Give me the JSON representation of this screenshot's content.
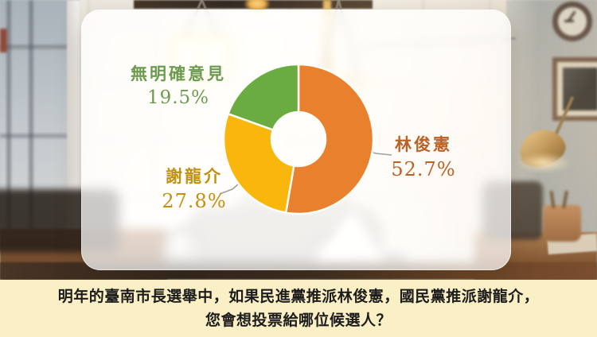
{
  "chart_data": {
    "type": "pie",
    "subtype": "donut",
    "title": "",
    "categories": [
      "林俊憲",
      "謝龍介",
      "無明確意見"
    ],
    "values": [
      52.7,
      27.8,
      19.5
    ],
    "unit": "%",
    "colors": [
      "#E8802E",
      "#F9B70D",
      "#6BAC42"
    ],
    "label_text_colors": [
      "#B96227",
      "#C2910F",
      "#6C9B4F"
    ],
    "start_angle": "top",
    "direction": "clockwise",
    "legend_position": "none",
    "labels": [
      {
        "name": "林俊憲",
        "value_text": "52.7%"
      },
      {
        "name": "謝龍介",
        "value_text": "27.8%"
      },
      {
        "name": "無明確意見",
        "value_text": "19.5%"
      }
    ]
  },
  "question": {
    "line1": "明年的臺南市長選舉中，如果民進黨推派林俊憲，國民黨推派謝龍介，",
    "line2": "您會想投票給哪位候選人？"
  },
  "colors": {
    "band_bg": "#FBF0C5",
    "question_text": "#1C1C1C",
    "leader_line": "#8F8F8F",
    "slice_stroke": "#FDFDF8"
  }
}
